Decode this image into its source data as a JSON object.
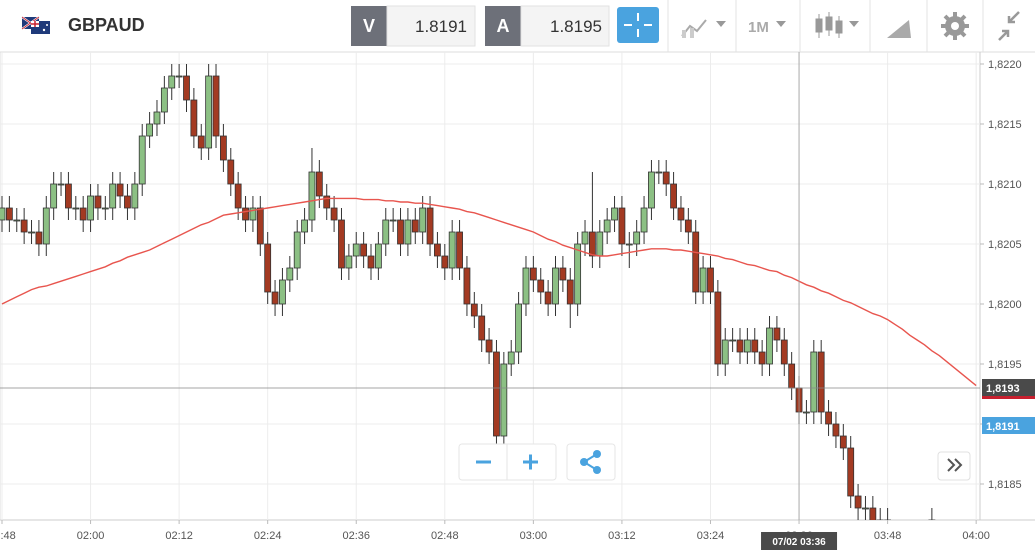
{
  "toolbar": {
    "symbol": "GBPAUD",
    "sell_label": "V",
    "sell_price": 1.8191,
    "buy_label": "A",
    "buy_price": 1.8195,
    "timeframe": "1M"
  },
  "chart_data": {
    "type": "candlestick",
    "categories": [
      "01:48",
      null,
      null,
      null,
      null,
      null,
      null,
      null,
      null,
      null,
      null,
      null,
      "02:00",
      null,
      null,
      null,
      null,
      null,
      null,
      null,
      null,
      null,
      null,
      null,
      "02:12",
      null,
      null,
      null,
      null,
      null,
      null,
      null,
      null,
      null,
      null,
      null,
      "02:24",
      null,
      null,
      null,
      null,
      null,
      null,
      null,
      null,
      null,
      null,
      null,
      "02:36",
      null,
      null,
      null,
      null,
      null,
      null,
      null,
      null,
      null,
      null,
      null,
      "02:48",
      null,
      null,
      null,
      null,
      null,
      null,
      null,
      null,
      null,
      null,
      null,
      "03:00",
      null,
      null,
      null,
      null,
      null,
      null,
      null,
      null,
      null,
      null,
      null,
      "03:12",
      null,
      null,
      null,
      null,
      null,
      null,
      null,
      null,
      null,
      null,
      null,
      "03:24",
      null,
      null,
      null,
      null,
      null,
      null,
      null,
      null,
      null,
      null,
      null,
      "03:36",
      null,
      null,
      null,
      null,
      null,
      null,
      null,
      null,
      null,
      null,
      null,
      "03:48",
      null,
      null,
      null,
      null,
      null,
      null,
      null,
      null,
      null,
      null,
      null,
      "04:00"
    ],
    "open": [
      1.8207,
      1.8208,
      1.8207,
      1.8207,
      1.8206,
      1.8206,
      1.8205,
      1.8208,
      1.821,
      1.821,
      1.8208,
      1.8208,
      1.8207,
      1.8209,
      1.8208,
      1.8208,
      1.821,
      1.8209,
      1.8208,
      1.821,
      1.8214,
      1.8215,
      1.8216,
      1.8218,
      1.8219,
      1.8219,
      1.8217,
      1.8214,
      1.8213,
      1.8219,
      1.8214,
      1.8212,
      1.821,
      1.8208,
      1.8207,
      1.8208,
      1.8205,
      1.8201,
      1.82,
      1.8202,
      1.8203,
      1.8206,
      1.8207,
      1.8211,
      1.8209,
      1.8208,
      1.8207,
      1.8203,
      1.8204,
      1.8205,
      1.8204,
      1.8203,
      1.8205,
      1.8207,
      1.8207,
      1.8205,
      1.8207,
      1.8206,
      1.8208,
      1.8205,
      1.8204,
      1.8203,
      1.8206,
      1.8203,
      1.82,
      1.8199,
      1.8197,
      1.8196,
      1.8189,
      1.8195,
      1.8196,
      1.82,
      1.8203,
      1.8202,
      1.8201,
      1.82,
      1.8203,
      1.8202,
      1.82,
      1.8205,
      1.8206,
      1.8204,
      1.8206,
      1.8207,
      1.8208,
      1.8205,
      1.8205,
      1.8206,
      1.8208,
      1.8211,
      1.8211,
      1.821,
      1.8208,
      1.8207,
      1.8206,
      1.8201,
      1.8203,
      1.8201,
      1.8195,
      1.8197,
      1.8197,
      1.8196,
      1.8197,
      1.8196,
      1.8195,
      1.8198,
      1.8197,
      1.8195,
      1.8193,
      1.8191,
      1.8191,
      1.8196,
      1.8191,
      1.819,
      1.8189,
      1.8188,
      1.8184,
      1.8183,
      1.8183,
      1.8181,
      1.8182,
      null,
      null,
      null,
      null,
      null,
      1.8182,
      null,
      null,
      null,
      null,
      null,
      null
    ],
    "high": [
      1.8209,
      1.8209,
      1.8208,
      1.8208,
      1.8207,
      1.8207,
      1.8209,
      1.8211,
      1.8211,
      1.8211,
      1.8209,
      1.8209,
      1.821,
      1.821,
      1.8209,
      1.8211,
      1.8211,
      1.821,
      1.8211,
      1.8215,
      1.8216,
      1.8217,
      1.8219,
      1.822,
      1.822,
      1.822,
      1.8218,
      1.8215,
      1.822,
      1.822,
      1.8215,
      1.8213,
      1.8211,
      1.8209,
      1.8209,
      1.8209,
      1.8206,
      1.8202,
      1.8203,
      1.8204,
      1.8207,
      1.8208,
      1.8213,
      1.8212,
      1.821,
      1.8209,
      1.8208,
      1.8205,
      1.8206,
      1.8206,
      1.8205,
      1.8206,
      1.8208,
      1.8208,
      1.8208,
      1.8208,
      1.8208,
      1.8209,
      1.8209,
      1.8206,
      1.8205,
      1.8207,
      1.8207,
      1.8204,
      1.8201,
      1.82,
      1.8198,
      1.8197,
      1.8196,
      1.8197,
      1.8201,
      1.8204,
      1.8204,
      1.8203,
      1.8202,
      1.8204,
      1.8204,
      1.8203,
      1.8206,
      1.8207,
      1.8211,
      1.8207,
      1.8208,
      1.8209,
      1.8209,
      1.8206,
      1.8207,
      1.8209,
      1.8212,
      1.8212,
      1.8212,
      1.8211,
      1.8209,
      1.8208,
      1.8207,
      1.8204,
      1.8204,
      1.8202,
      1.8198,
      1.8198,
      1.8198,
      1.8198,
      1.8198,
      1.8197,
      1.8199,
      1.8199,
      1.8198,
      1.8196,
      1.8194,
      1.8192,
      1.8197,
      1.8197,
      1.8192,
      1.8191,
      1.819,
      1.8189,
      1.8185,
      1.8184,
      1.8184,
      1.8183,
      1.8183,
      null,
      null,
      null,
      null,
      null,
      1.8183,
      null,
      null,
      null,
      null,
      null,
      null
    ],
    "low": [
      1.8206,
      1.8206,
      1.8206,
      1.8205,
      1.8205,
      1.8204,
      1.8204,
      1.8207,
      1.8209,
      1.8207,
      1.8207,
      1.8206,
      1.8206,
      1.8207,
      1.8207,
      1.8207,
      1.8208,
      1.8207,
      1.8207,
      1.8209,
      1.8213,
      1.8214,
      1.8215,
      1.8217,
      1.8218,
      1.8216,
      1.8213,
      1.8212,
      1.8212,
      1.8213,
      1.8211,
      1.8209,
      1.8207,
      1.8206,
      1.8206,
      1.8204,
      1.82,
      1.8199,
      1.8199,
      1.8201,
      1.8202,
      1.8205,
      1.8206,
      1.8208,
      1.8207,
      1.8206,
      1.8202,
      1.8202,
      1.8203,
      1.8203,
      1.8202,
      1.8202,
      1.8204,
      1.8206,
      1.8204,
      1.8204,
      1.8205,
      1.8205,
      1.8204,
      1.8203,
      1.8202,
      1.8202,
      1.8202,
      1.8199,
      1.8198,
      1.8196,
      1.8195,
      1.8188,
      1.8188,
      1.8194,
      1.8195,
      1.8199,
      1.8201,
      1.82,
      1.8199,
      1.8199,
      1.8201,
      1.8198,
      1.8199,
      1.8204,
      1.8203,
      1.8203,
      1.8205,
      1.8206,
      1.8204,
      1.8203,
      1.8204,
      1.8205,
      1.8207,
      1.821,
      1.8209,
      1.8207,
      1.8206,
      1.8205,
      1.82,
      1.82,
      1.82,
      1.8194,
      1.8194,
      1.8196,
      1.8195,
      1.8195,
      1.8195,
      1.8194,
      1.8194,
      1.8196,
      1.8194,
      1.8192,
      1.819,
      1.819,
      1.819,
      1.819,
      1.8189,
      1.8188,
      1.8187,
      1.8183,
      1.8182,
      1.8182,
      1.818,
      1.818,
      1.8181,
      null,
      null,
      null,
      null,
      null,
      1.8181,
      null,
      null,
      null,
      null,
      null,
      null
    ],
    "close": [
      1.8208,
      1.8207,
      1.8207,
      1.8206,
      1.8206,
      1.8205,
      1.8208,
      1.821,
      1.821,
      1.8208,
      1.8208,
      1.8207,
      1.8209,
      1.8208,
      1.8208,
      1.821,
      1.8209,
      1.8208,
      1.821,
      1.8214,
      1.8215,
      1.8216,
      1.8218,
      1.8219,
      1.8219,
      1.8217,
      1.8214,
      1.8213,
      1.8219,
      1.8214,
      1.8212,
      1.821,
      1.8208,
      1.8207,
      1.8208,
      1.8205,
      1.8201,
      1.82,
      1.8202,
      1.8203,
      1.8206,
      1.8207,
      1.8211,
      1.8209,
      1.8208,
      1.8207,
      1.8203,
      1.8204,
      1.8205,
      1.8204,
      1.8203,
      1.8205,
      1.8207,
      1.8207,
      1.8205,
      1.8207,
      1.8206,
      1.8208,
      1.8205,
      1.8204,
      1.8203,
      1.8206,
      1.8203,
      1.82,
      1.8199,
      1.8197,
      1.8196,
      1.8189,
      1.8195,
      1.8196,
      1.82,
      1.8203,
      1.8202,
      1.8201,
      1.82,
      1.8203,
      1.8202,
      1.82,
      1.8205,
      1.8206,
      1.8204,
      1.8206,
      1.8207,
      1.8208,
      1.8205,
      1.8205,
      1.8206,
      1.8208,
      1.8211,
      1.8211,
      1.821,
      1.8208,
      1.8207,
      1.8206,
      1.8201,
      1.8203,
      1.8201,
      1.8195,
      1.8197,
      1.8197,
      1.8196,
      1.8197,
      1.8196,
      1.8195,
      1.8198,
      1.8197,
      1.8195,
      1.8193,
      1.8191,
      1.8191,
      1.8196,
      1.8191,
      1.819,
      1.8189,
      1.8188,
      1.8184,
      1.8183,
      1.8183,
      1.8181,
      1.8182,
      1.8182,
      null,
      null,
      null,
      null,
      null,
      1.8182,
      null,
      null,
      null,
      null,
      null,
      null
    ],
    "up_color": "#8cc084",
    "down_color": "#a33a22",
    "moving_average": {
      "color": "#e8554e",
      "values": [
        1.82,
        1.82003,
        1.82006,
        1.82009,
        1.82012,
        1.82014,
        1.82015,
        1.82017,
        1.82019,
        1.82021,
        1.82023,
        1.82025,
        1.82027,
        1.82029,
        1.82031,
        1.82034,
        1.82036,
        1.82039,
        1.82041,
        1.82043,
        1.82045,
        1.82048,
        1.82051,
        1.82054,
        1.82057,
        1.8206,
        1.82063,
        1.82066,
        1.82068,
        1.82071,
        1.82074,
        1.82075,
        1.82076,
        1.82077,
        1.82078,
        1.82079,
        1.8208,
        1.82081,
        1.82082,
        1.82083,
        1.82084,
        1.82085,
        1.82086,
        1.82087,
        1.82088,
        1.82088,
        1.82088,
        1.82088,
        1.82088,
        1.82087,
        1.82087,
        1.82087,
        1.82086,
        1.82086,
        1.82085,
        1.82085,
        1.82084,
        1.82084,
        1.82083,
        1.82082,
        1.82081,
        1.8208,
        1.82079,
        1.82077,
        1.82076,
        1.82074,
        1.82072,
        1.8207,
        1.82068,
        1.82066,
        1.82064,
        1.82062,
        1.8206,
        1.82057,
        1.82054,
        1.82052,
        1.82049,
        1.82047,
        1.82045,
        1.82043,
        1.82041,
        1.8204,
        1.8204,
        1.82041,
        1.82042,
        1.82043,
        1.82044,
        1.82045,
        1.82046,
        1.82046,
        1.82046,
        1.82045,
        1.82045,
        1.82044,
        1.82043,
        1.82042,
        1.82041,
        1.8204,
        1.82038,
        1.82037,
        1.82035,
        1.82033,
        1.82032,
        1.8203,
        1.82028,
        1.82027,
        1.82024,
        1.82022,
        1.82019,
        1.82016,
        1.82014,
        1.82011,
        1.82009,
        1.82006,
        1.82003,
        1.82001,
        1.81998,
        1.81995,
        1.81992,
        1.8199,
        1.81987,
        1.81983,
        1.81979,
        1.81974,
        1.8197,
        1.81966,
        1.81961,
        1.81957,
        1.81952,
        1.81947,
        1.81942,
        1.81937,
        1.81932
      ]
    },
    "ylim": [
      1.8182,
      1.8221
    ],
    "yticks": [
      {
        "value": 1.8185,
        "label": "1,8185"
      },
      {
        "value": 1.819,
        "label": "1,8190"
      },
      {
        "value": 1.8195,
        "label": "1,8195"
      },
      {
        "value": 1.82,
        "label": "1,8200"
      },
      {
        "value": 1.8205,
        "label": "1,8205"
      },
      {
        "value": 1.821,
        "label": "1,8210"
      },
      {
        "value": 1.8215,
        "label": "1,8215"
      },
      {
        "value": 1.822,
        "label": "1,8220"
      }
    ],
    "grid": true,
    "price_tags": [
      {
        "value": 1.8193,
        "label": "1,8193",
        "color": "#4a4a4a"
      },
      {
        "value": 1.8191,
        "label": "1,8191",
        "color": "#4aa3df"
      }
    ],
    "crosshair": {
      "category": "03:36",
      "label": "07/02 03:36"
    }
  }
}
